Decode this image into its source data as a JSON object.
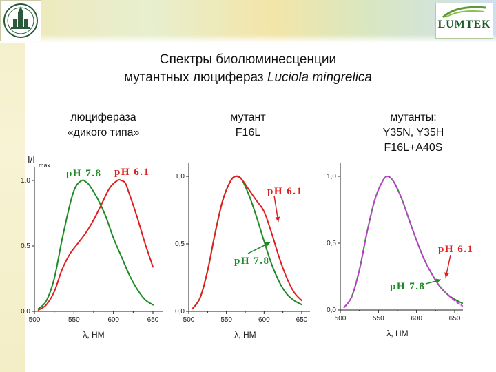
{
  "header": {
    "logo_text": "LUMTEK",
    "title_line1": "Спектры биолюминесценции",
    "title_line2_prefix": "мутантных люцифераз ",
    "title_line2_italic": "Luciola mingrelica"
  },
  "captions": {
    "wild_line1": "люцифераза",
    "wild_line2": "«дикого типа»",
    "f16l_line1": "мутант",
    "f16l_line2": "F16L",
    "multi_line1": "мутанты:",
    "multi_line2": "Y35N, Y35H",
    "multi_line3": "F16L+A40S"
  },
  "colors": {
    "green": "#1e8a26",
    "red": "#e02020",
    "purple": "#c040d0"
  },
  "chart_data": [
    {
      "type": "line",
      "ylabel": "I/I",
      "ylabel_sub": "max",
      "xlabel": "λ, HM",
      "xlim": [
        500,
        650
      ],
      "ylim": [
        0,
        1.0
      ],
      "x_ticks": [
        "500",
        "550",
        "600",
        "650"
      ],
      "y_ticks": [
        "0.0",
        "0.5",
        "1.0"
      ],
      "annotations": [
        "pH 7.8",
        "pH 6.1"
      ],
      "series": [
        {
          "color": "green",
          "x": [
            505,
            515,
            525,
            535,
            545,
            552,
            560,
            565,
            570,
            580,
            590,
            600,
            610,
            620,
            630,
            640,
            650
          ],
          "y": [
            0.02,
            0.08,
            0.25,
            0.55,
            0.82,
            0.95,
            1.0,
            0.99,
            0.96,
            0.86,
            0.73,
            0.56,
            0.42,
            0.28,
            0.17,
            0.09,
            0.05
          ]
        },
        {
          "color": "red",
          "x": [
            505,
            515,
            525,
            535,
            545,
            555,
            565,
            575,
            585,
            595,
            605,
            610,
            615,
            620,
            630,
            640,
            650
          ],
          "y": [
            0.01,
            0.05,
            0.15,
            0.32,
            0.44,
            0.52,
            0.6,
            0.7,
            0.82,
            0.94,
            1.0,
            1.0,
            0.98,
            0.9,
            0.72,
            0.52,
            0.34
          ]
        }
      ]
    },
    {
      "type": "line",
      "xlabel": "λ, HM",
      "xlim": [
        500,
        650
      ],
      "ylim": [
        0,
        1.0
      ],
      "x_ticks": [
        "500",
        "550",
        "600",
        "650"
      ],
      "y_ticks": [
        "0,0",
        "0,5",
        "1,0"
      ],
      "annotations": [
        "pH 6.1",
        "pH 7.8"
      ],
      "series": [
        {
          "color": "green",
          "x": [
            505,
            515,
            525,
            535,
            545,
            555,
            562,
            570,
            580,
            590,
            600,
            610,
            620,
            630,
            640,
            650
          ],
          "y": [
            0.02,
            0.1,
            0.3,
            0.58,
            0.82,
            0.96,
            1.0,
            0.98,
            0.86,
            0.7,
            0.52,
            0.35,
            0.22,
            0.13,
            0.08,
            0.05
          ]
        },
        {
          "color": "red",
          "x": [
            505,
            515,
            525,
            535,
            545,
            555,
            562,
            570,
            580,
            590,
            600,
            610,
            620,
            630,
            640,
            650
          ],
          "y": [
            0.02,
            0.1,
            0.3,
            0.58,
            0.82,
            0.96,
            1.0,
            0.98,
            0.9,
            0.82,
            0.74,
            0.58,
            0.4,
            0.25,
            0.14,
            0.08
          ]
        }
      ]
    },
    {
      "type": "line",
      "xlabel": "λ, HM",
      "xlim": [
        500,
        650
      ],
      "ylim": [
        0,
        1.0
      ],
      "x_ticks": [
        "500",
        "550",
        "600",
        "650"
      ],
      "y_ticks": [
        "0,0",
        "0,5",
        "1,0"
      ],
      "annotations": [
        "pH 6.1",
        "pH 7.8"
      ],
      "series": [
        {
          "color": "green",
          "x": [
            505,
            515,
            525,
            535,
            545,
            555,
            562,
            570,
            580,
            590,
            600,
            610,
            620,
            630,
            640,
            650,
            660
          ],
          "y": [
            0.02,
            0.1,
            0.3,
            0.58,
            0.82,
            0.96,
            1.0,
            0.96,
            0.84,
            0.68,
            0.52,
            0.38,
            0.27,
            0.18,
            0.12,
            0.08,
            0.05
          ]
        },
        {
          "color": "purple",
          "dashed": true,
          "x": [
            505,
            515,
            525,
            535,
            545,
            555,
            562,
            570,
            580,
            590,
            600,
            610,
            620,
            630,
            640,
            650,
            660
          ],
          "y": [
            0.02,
            0.1,
            0.3,
            0.58,
            0.82,
            0.96,
            1.0,
            0.96,
            0.84,
            0.68,
            0.52,
            0.38,
            0.27,
            0.18,
            0.12,
            0.07,
            0.03
          ]
        }
      ]
    }
  ]
}
